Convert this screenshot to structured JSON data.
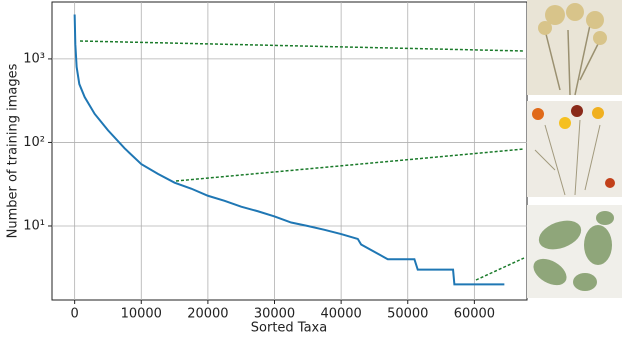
{
  "chart_data": {
    "type": "line",
    "xlabel": "Sorted Taxa",
    "ylabel": "Number of training images",
    "x": [
      0,
      100,
      300,
      700,
      1500,
      3000,
      5000,
      7500,
      10000,
      12500,
      15000,
      17500,
      20000,
      22500,
      25000,
      27500,
      30000,
      32500,
      35000,
      37500,
      40000,
      42500,
      43000,
      47000,
      51000,
      51500,
      56800,
      57000,
      64500
    ],
    "values": [
      3400,
      1500,
      800,
      500,
      350,
      220,
      140,
      85,
      55,
      42,
      33,
      28,
      23,
      20,
      17,
      15,
      13,
      11,
      10,
      9,
      8,
      7,
      6,
      4,
      4,
      3,
      3,
      2,
      2
    ],
    "color": "#1f77b4",
    "xlim": [
      -3400,
      67900
    ],
    "ylim": [
      1.3,
      4800
    ],
    "log_y": true,
    "grid": true,
    "xticks": [
      0,
      10000,
      20000,
      30000,
      40000,
      50000,
      60000
    ],
    "yticks": [
      {
        "value": 10,
        "label": "10¹"
      },
      {
        "value": 100,
        "label": "10²"
      },
      {
        "value": 1000,
        "label": "10³"
      }
    ]
  }
}
